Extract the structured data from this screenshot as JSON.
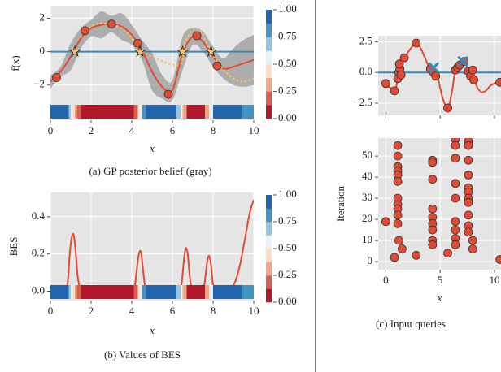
{
  "chart_data": [
    {
      "type": "line",
      "xlim": [
        0,
        10
      ],
      "ylim": [
        -4.1,
        2.7
      ],
      "xticks": [
        0,
        2,
        4,
        6,
        8,
        10
      ],
      "yticks": [
        {
          "value": -2,
          "label": "−2"
        },
        0,
        2
      ],
      "grid": true,
      "xlabel": "x",
      "ylabel": "f(x)",
      "caption": "(a) GP posterior belief (gray)",
      "band": {
        "color": "#9a9a9a",
        "x": [
          0,
          0.5,
          1,
          1.5,
          2,
          2.5,
          3,
          3.5,
          4,
          4.5,
          5,
          5.5,
          6,
          6.5,
          7,
          7.5,
          8,
          8.5,
          9,
          9.5,
          10
        ],
        "lower": [
          -2.2,
          -1.5,
          -1.1,
          0.2,
          0.9,
          0.8,
          1.15,
          0.7,
          0.4,
          -0.5,
          -2.3,
          -2.8,
          -2.9,
          -1.1,
          0.4,
          0.0,
          -0.9,
          -1.6,
          -2.0,
          -2.1,
          -2.0
        ],
        "upper": [
          -1.4,
          -0.9,
          0.5,
          1.4,
          1.9,
          2.4,
          2.15,
          2.3,
          1.6,
          0.7,
          -0.1,
          -1.4,
          -1.7,
          0.9,
          1.4,
          1.2,
          0.3,
          -0.4,
          0.2,
          0.7,
          1.0
        ]
      },
      "hline": {
        "value": 0,
        "color": "#348abd"
      },
      "series": [
        {
          "mark": "line",
          "color": "#e24a33",
          "x": [
            0,
            0.5,
            1,
            1.5,
            2,
            2.5,
            3,
            3.5,
            4,
            4.5,
            5,
            5.5,
            6,
            6.5,
            7,
            7.5,
            8,
            8.5,
            9,
            9.5,
            10
          ],
          "values": [
            -1.8,
            -1.2,
            -0.3,
            0.8,
            1.4,
            1.6,
            1.65,
            1.5,
            1.0,
            0.1,
            -1.2,
            -2.1,
            -2.3,
            -0.1,
            0.9,
            0.6,
            -0.3,
            -1.0,
            -0.9,
            -0.7,
            -0.5
          ]
        },
        {
          "mark": "dotted",
          "color": "#fbc15e",
          "x": [
            1.5,
            2,
            2.5,
            3,
            3.5,
            4,
            4.5,
            6.3,
            6.6,
            7,
            7.4,
            7.8,
            8.2,
            8.6,
            9,
            9.4,
            9.8,
            10
          ],
          "values": [
            0.9,
            1.5,
            1.7,
            1.6,
            1.4,
            0.8,
            0,
            -0.8,
            0.5,
            1.3,
            1.2,
            0.2,
            -0.6,
            -1.2,
            -1.6,
            -1.8,
            -1.7,
            -1.6
          ]
        },
        {
          "mark": "dots",
          "color": "#e24a33",
          "x": [
            0.3,
            1.7,
            3,
            4.3,
            5.8,
            7.2,
            8.2
          ],
          "values": [
            -1.55,
            1.25,
            1.65,
            0.5,
            -2.55,
            0.95,
            -0.85
          ]
        },
        {
          "mark": "star",
          "color": "#fbc15e",
          "x": [
            1.2,
            4.4,
            6.5,
            7.9
          ],
          "values": [
            0,
            0,
            0,
            0
          ]
        }
      ],
      "strip": {
        "edges": [
          0,
          0.9,
          1.0,
          1.1,
          1.2,
          1.3,
          1.5,
          4.1,
          4.3,
          4.4,
          4.5,
          4.7,
          6.2,
          6.4,
          6.5,
          6.7,
          7.6,
          7.8,
          8.0,
          9.4,
          10
        ],
        "values": [
          0.95,
          0.7,
          0.55,
          0.45,
          0.3,
          0.15,
          0.05,
          0.2,
          0.45,
          0.6,
          0.8,
          0.95,
          0.7,
          0.5,
          0.25,
          0.05,
          0.3,
          0.6,
          0.95,
          0.8
        ]
      },
      "colorbar": {
        "lim": [
          0,
          1
        ],
        "colors": [
          "#b2182b",
          "#d6604d",
          "#f4a582",
          "#fddbc7",
          "#e8f1f7",
          "#92c5de",
          "#4393c3",
          "#2166ac"
        ],
        "ticks": [
          {
            "value": 1,
            "label": "1.00"
          },
          {
            "value": 0.75,
            "label": "0.75"
          },
          {
            "value": 0.5,
            "label": "0.50"
          },
          {
            "value": 0.25,
            "label": "0.25"
          },
          {
            "value": 0,
            "label": "0.00"
          }
        ]
      }
    },
    {
      "type": "line",
      "xlim": [
        0,
        10
      ],
      "ylim": [
        -0.05,
        0.53
      ],
      "xticks": [
        0,
        2,
        4,
        6,
        8,
        10
      ],
      "yticks": [
        {
          "value": 0,
          "label": "0.0"
        },
        {
          "value": 0.2,
          "label": "0.2"
        },
        {
          "value": 0.4,
          "label": "0.4"
        }
      ],
      "grid": true,
      "xlabel": "x",
      "ylabel": "BES",
      "caption": "(b) Values of BES",
      "series": [
        {
          "mark": "line",
          "color": "#e24a33",
          "x": [
            0,
            0.7,
            0.85,
            0.95,
            1.05,
            1.15,
            1.25,
            1.35,
            1.5,
            1.8,
            4.0,
            4.15,
            4.25,
            4.35,
            4.45,
            4.55,
            4.65,
            4.8,
            6.3,
            6.45,
            6.55,
            6.65,
            6.75,
            6.85,
            6.95,
            7.1,
            7.5,
            7.6,
            7.7,
            7.8,
            7.9,
            8.0,
            8.1,
            8.7,
            9.0,
            9.3,
            9.6,
            9.8,
            10
          ],
          "values": [
            0,
            0.005,
            0.05,
            0.2,
            0.29,
            0.3,
            0.2,
            0.07,
            0.01,
            0,
            0,
            0.03,
            0.12,
            0.2,
            0.21,
            0.12,
            0.03,
            0,
            0,
            0.04,
            0.15,
            0.23,
            0.2,
            0.08,
            0.01,
            0,
            0.01,
            0.06,
            0.15,
            0.19,
            0.14,
            0.03,
            0,
            0,
            0.03,
            0.13,
            0.3,
            0.42,
            0.49
          ]
        }
      ],
      "strip": {
        "edges": [
          0,
          0.9,
          1.0,
          1.1,
          1.2,
          1.3,
          1.5,
          4.1,
          4.3,
          4.4,
          4.5,
          4.7,
          6.2,
          6.4,
          6.5,
          6.7,
          7.6,
          7.8,
          8.0,
          9.4,
          10
        ],
        "values": [
          0.95,
          0.7,
          0.55,
          0.45,
          0.3,
          0.15,
          0.05,
          0.2,
          0.45,
          0.6,
          0.8,
          0.95,
          0.7,
          0.5,
          0.25,
          0.05,
          0.3,
          0.6,
          0.95,
          0.8
        ]
      },
      "colorbar": {
        "lim": [
          0,
          1
        ],
        "colors": [
          "#b2182b",
          "#d6604d",
          "#f4a582",
          "#fddbc7",
          "#e8f1f7",
          "#92c5de",
          "#4393c3",
          "#2166ac"
        ],
        "ticks": [
          {
            "value": 1,
            "label": "1.00"
          },
          {
            "value": 0.75,
            "label": "0.75"
          },
          {
            "value": 0.5,
            "label": "0.50"
          },
          {
            "value": 0.25,
            "label": "0.25"
          },
          {
            "value": 0,
            "label": "0.00"
          }
        ]
      }
    },
    {
      "type": "scatter",
      "xlim": [
        -0.7,
        10.6
      ],
      "ylim": [
        -3.5,
        3.0
      ],
      "xticks": [
        0,
        5,
        10
      ],
      "xticklabels": false,
      "yticks": [
        {
          "value": -2.5,
          "label": "−2.5"
        },
        {
          "value": 0,
          "label": "0.0"
        },
        {
          "value": 2.5,
          "label": "2.5"
        }
      ],
      "grid": true,
      "hline": {
        "value": 0,
        "color": "#348abd"
      },
      "series": [
        {
          "mark": "line",
          "color": "#e24a33",
          "x": [
            0,
            0.5,
            0.8,
            1,
            1.2,
            1.5,
            1.7,
            2,
            2.5,
            2.8,
            3.2,
            3.6,
            4,
            4.4,
            4.8,
            5.2,
            5.7,
            6.1,
            6.4,
            6.8,
            7.2,
            7.6,
            8,
            8.4,
            8.8,
            9.2,
            9.6,
            10,
            10.5
          ],
          "values": [
            -1.0,
            -1.3,
            -1.5,
            -1.0,
            0.0,
            0.8,
            1.2,
            1.6,
            2.2,
            2.4,
            2.0,
            1.2,
            0.4,
            0,
            -0.5,
            -2.0,
            -2.9,
            -1.5,
            0.2,
            0.6,
            0.9,
            0.2,
            -0.3,
            -1.2,
            -1.6,
            -1.5,
            -1.1,
            -0.9,
            -0.8
          ]
        },
        {
          "mark": "dots",
          "color": "#e24a33",
          "x": [
            0,
            0.8,
            1.1,
            1.2,
            1.3,
            1.25,
            1.4,
            1.7,
            2.8,
            4.1,
            4.4,
            4.6,
            5.7,
            6.4,
            6.6,
            6.8,
            7.2,
            7.6,
            7.8,
            8.0,
            8.1,
            10.5
          ],
          "values": [
            -0.9,
            -1.5,
            -0.5,
            0,
            0.3,
            0.7,
            -0.2,
            1.2,
            2.4,
            0.3,
            0,
            -0.3,
            -2.9,
            0.2,
            0.4,
            0.6,
            0.9,
            0.1,
            -0.3,
            0.2,
            -0.6,
            -0.8
          ]
        },
        {
          "mark": "cross",
          "color": "#348abd",
          "x": [
            4.4,
            7.1
          ],
          "values": [
            0.4,
            0.9
          ]
        }
      ]
    },
    {
      "type": "scatter",
      "xlim": [
        -0.7,
        10.6
      ],
      "ylim": [
        -3.8,
        58.5
      ],
      "xticks": [
        0,
        5,
        10
      ],
      "yticks": [
        0,
        10,
        20,
        30,
        40,
        50
      ],
      "grid": true,
      "xlabel": "x",
      "ylabel": "Iteration",
      "caption": "(c) Input queries",
      "series": [
        {
          "mark": "dots",
          "color": "#e24a33",
          "x": [
            0,
            0.8,
            1.1,
            1.1,
            1.1,
            1.1,
            1.1,
            1.1,
            1.1,
            1.1,
            1.1,
            1.1,
            1.1,
            1.2,
            1.5,
            2.8,
            4.3,
            4.3,
            4.3,
            4.3,
            4.3,
            4.3,
            4.3,
            4.3,
            4.3,
            5.7,
            6.4,
            6.4,
            6.4,
            6.4,
            6.4,
            6.4,
            6.4,
            6.4,
            6.4,
            7.6,
            7.6,
            7.6,
            7.6,
            7.6,
            7.6,
            7.6,
            7.6,
            7.6,
            7.6,
            7.6,
            8.0,
            8.0,
            10.5
          ],
          "values": [
            19,
            2,
            55,
            50,
            45,
            43,
            41,
            38,
            30,
            27,
            25,
            22,
            18,
            10,
            6,
            3,
            48,
            47,
            39,
            25,
            21,
            18,
            15,
            10,
            8,
            4,
            58,
            55,
            49,
            37,
            30,
            19,
            15,
            11,
            8,
            57,
            55,
            48,
            41,
            35,
            33,
            30,
            28,
            22,
            17,
            14,
            10,
            6,
            1
          ]
        }
      ]
    }
  ]
}
